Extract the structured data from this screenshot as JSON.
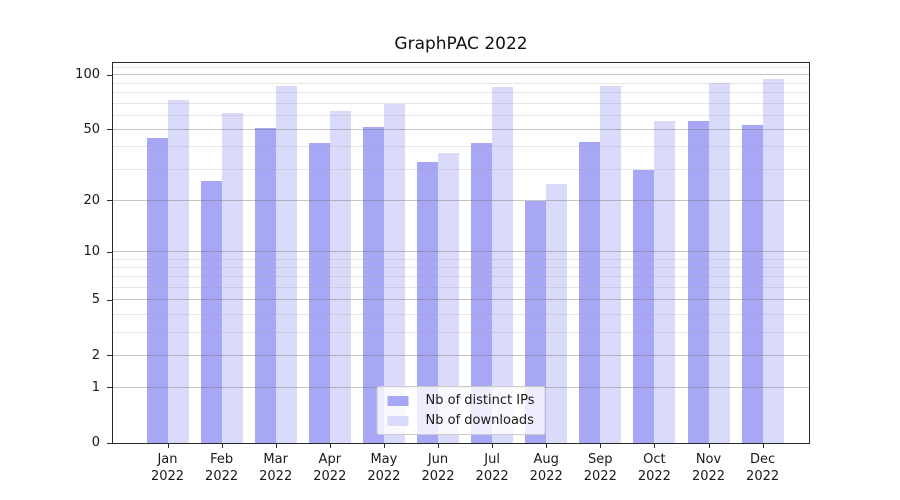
{
  "title": "GraphPAC 2022",
  "chart_data": {
    "type": "bar",
    "title": "GraphPAC 2022",
    "categories": [
      "Jan",
      "Feb",
      "Mar",
      "Apr",
      "May",
      "Jun",
      "Jul",
      "Aug",
      "Sep",
      "Oct",
      "Nov",
      "Dec"
    ],
    "category_year": "2022",
    "series": [
      {
        "name": "Nb of distinct IPs",
        "color": "#a7a7f6",
        "values": [
          45,
          26,
          51,
          42,
          52,
          33,
          42,
          20,
          43,
          30,
          56,
          53
        ]
      },
      {
        "name": "Nb of downloads",
        "color": "#dadafa",
        "values": [
          73,
          62,
          87,
          64,
          70,
          37,
          86,
          25,
          88,
          56,
          91,
          96
        ]
      }
    ],
    "yscale": "log1p",
    "ylim": [
      0,
      117
    ],
    "y_major_ticks": [
      100,
      50,
      20,
      10,
      5,
      2,
      1,
      0
    ],
    "y_minor_gridlines": [
      3,
      4,
      6,
      7,
      8,
      9,
      30,
      40,
      60,
      70,
      80,
      90,
      110
    ],
    "grid": "both",
    "legend_position": "lower center",
    "background": "#ffffff"
  }
}
